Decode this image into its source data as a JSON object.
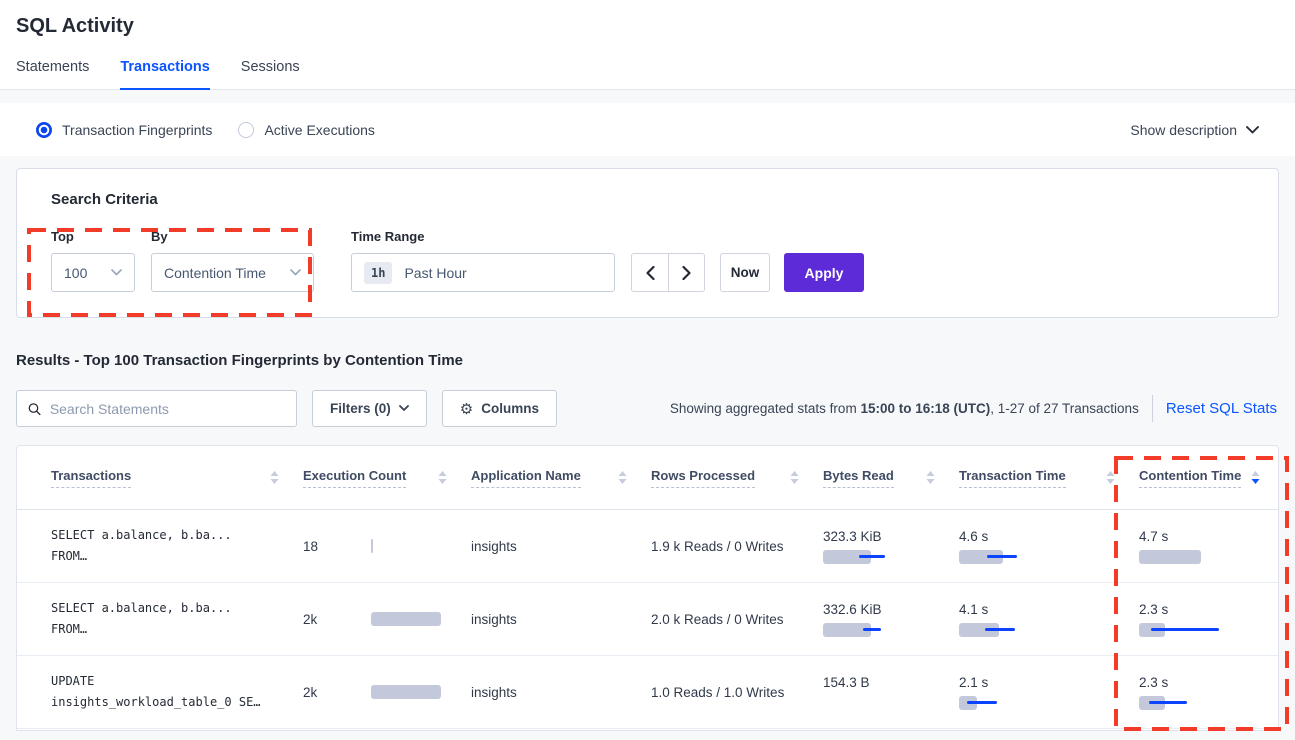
{
  "page": {
    "title": "SQL Activity"
  },
  "tabs": [
    {
      "label": "Statements"
    },
    {
      "label": "Transactions"
    },
    {
      "label": "Sessions"
    }
  ],
  "view_toggle": {
    "fingerprints_label": "Transaction Fingerprints",
    "active_executions_label": "Active Executions",
    "show_description_label": "Show description"
  },
  "search_criteria": {
    "heading": "Search Criteria",
    "top_label": "Top",
    "top_value": "100",
    "by_label": "By",
    "by_value": "Contention Time",
    "time_range_label": "Time Range",
    "time_range_badge": "1h",
    "time_range_value": "Past Hour",
    "now_label": "Now",
    "apply_label": "Apply"
  },
  "results": {
    "heading": "Results - Top 100 Transaction Fingerprints by Contention Time",
    "search_placeholder": "Search Statements",
    "filters_label": "Filters (0)",
    "columns_label": "Columns",
    "stats_prefix": "Showing aggregated stats from ",
    "stats_range": "15:00 to 16:18 (UTC)",
    "stats_suffix": ", 1-27 of 27 Transactions",
    "reset_label": "Reset SQL Stats"
  },
  "table": {
    "columns": [
      "Transactions",
      "Execution Count",
      "Application Name",
      "Rows Processed",
      "Bytes Read",
      "Transaction Time",
      "Contention Time"
    ],
    "sort": {
      "column": "Contention Time",
      "direction": "desc"
    },
    "rows": [
      {
        "transaction_line1": "SELECT a.balance, b.ba...",
        "transaction_line2": "FROM…",
        "execution_count": "18",
        "application_name": "insights",
        "rows_processed": "1.9 k Reads / 0 Writes",
        "bytes_read": "323.3 KiB",
        "transaction_time": "4.6 s",
        "contention_time": "4.7 s",
        "bars": {
          "execution": {
            "bar": 2
          },
          "bytes_read": {
            "bar": 48,
            "line": [
              36,
              62
            ]
          },
          "transaction_time": {
            "bar": 44,
            "line": [
              28,
              58
            ]
          },
          "contention_time": {
            "bar": 62
          }
        }
      },
      {
        "transaction_line1": "SELECT a.balance, b.ba...",
        "transaction_line2": "FROM…",
        "execution_count": "2k",
        "application_name": "insights",
        "rows_processed": "2.0 k Reads / 0 Writes",
        "bytes_read": "332.6 KiB",
        "transaction_time": "4.1 s",
        "contention_time": "2.3 s",
        "bars": {
          "execution": {
            "bar": 70
          },
          "bytes_read": {
            "bar": 48,
            "line": [
              40,
              58
            ]
          },
          "transaction_time": {
            "bar": 40,
            "line": [
              26,
              56
            ]
          },
          "contention_time": {
            "bar": 26,
            "line": [
              12,
              80
            ]
          }
        }
      },
      {
        "transaction_line1": "UPDATE",
        "transaction_line2": "insights_workload_table_0 SE…",
        "execution_count": "2k",
        "application_name": "insights",
        "rows_processed": "1.0 Reads / 1.0 Writes",
        "bytes_read": "154.3 B",
        "transaction_time": "2.1 s",
        "contention_time": "2.3 s",
        "bars": {
          "execution": {
            "bar": 70
          },
          "transaction_time": {
            "bar": 18,
            "line": [
              8,
              38
            ]
          },
          "contention_time": {
            "bar": 26,
            "line": [
              10,
              48
            ]
          }
        }
      }
    ]
  },
  "icons": {
    "gear": "⚙"
  },
  "colors": {
    "accent_blue": "#0a55ff",
    "apply_purple": "#5e2bd9",
    "bar_gray": "#c3c9da",
    "bar_blue": "#0b43ff",
    "annotation_red": "#f23b28"
  }
}
